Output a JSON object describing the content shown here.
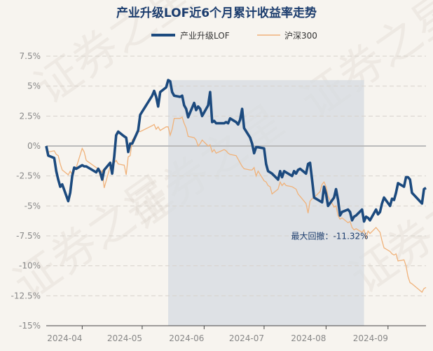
{
  "chart_data": {
    "type": "line",
    "title": "产业升级LOF近6个月累计收益率走势",
    "watermark": "证券之星",
    "colors": {
      "fund": "#1c4a7e",
      "index": "#f0b27a",
      "drawdown": "#d5dbe1",
      "zero": "#bbbbbb",
      "grid": "#d7d2cb"
    },
    "ylim": [
      -15,
      7.5
    ],
    "yticks": [
      7.5,
      5,
      2.5,
      0,
      -2.5,
      -5,
      -7.5,
      -10,
      -12.5,
      -15
    ],
    "ytick_labels": [
      "7.5%",
      "5%",
      "2.5%",
      "0%",
      "-2.5%",
      "-5%",
      "-7.5%",
      "-10%",
      "-12.5%",
      "-15%"
    ],
    "xlim": [
      "2024-03-14",
      "2024-09-20"
    ],
    "xticks": [
      "2024-04-01",
      "2024-05-01",
      "2024-06-01",
      "2024-07-01",
      "2024-08-01",
      "2024-09-01"
    ],
    "xtick_labels": [
      "2024-04",
      "2024-05",
      "2024-06",
      "2024-07",
      "2024-08",
      "2024-09"
    ],
    "legend": {
      "position": "top-center"
    },
    "grid": true,
    "series": [
      {
        "name": "产业升级LOF",
        "points": [
          [
            "2024-03-14",
            0.0
          ],
          [
            "2024-03-15",
            -0.8
          ],
          [
            "2024-03-18",
            -1.0
          ],
          [
            "2024-03-19",
            -2.1
          ],
          [
            "2024-03-20",
            -2.8
          ],
          [
            "2024-03-21",
            -3.4
          ],
          [
            "2024-03-22",
            -3.2
          ],
          [
            "2024-03-25",
            -4.6
          ],
          [
            "2024-03-26",
            -3.9
          ],
          [
            "2024-03-27",
            -2.5
          ],
          [
            "2024-03-28",
            -1.8
          ],
          [
            "2024-03-29",
            -1.9
          ],
          [
            "2024-04-01",
            -1.6
          ],
          [
            "2024-04-02",
            -1.7
          ],
          [
            "2024-04-03",
            -1.7
          ],
          [
            "2024-04-08",
            -2.2
          ],
          [
            "2024-04-09",
            -1.9
          ],
          [
            "2024-04-10",
            -2.2
          ],
          [
            "2024-04-11",
            -2.8
          ],
          [
            "2024-04-12",
            -2.0
          ],
          [
            "2024-04-15",
            -1.4
          ],
          [
            "2024-04-16",
            -2.3
          ],
          [
            "2024-04-17",
            -0.9
          ],
          [
            "2024-04-18",
            0.9
          ],
          [
            "2024-04-19",
            1.2
          ],
          [
            "2024-04-22",
            0.8
          ],
          [
            "2024-04-23",
            0.7
          ],
          [
            "2024-04-24",
            -0.5
          ],
          [
            "2024-04-25",
            0.2
          ],
          [
            "2024-04-26",
            0.2
          ],
          [
            "2024-04-29",
            1.3
          ],
          [
            "2024-04-30",
            2.6
          ],
          [
            "2024-05-06",
            4.2
          ],
          [
            "2024-05-07",
            4.6
          ],
          [
            "2024-05-08",
            4.1
          ],
          [
            "2024-05-09",
            3.3
          ],
          [
            "2024-05-10",
            4.5
          ],
          [
            "2024-05-13",
            4.9
          ],
          [
            "2024-05-14",
            5.5
          ],
          [
            "2024-05-15",
            5.4
          ],
          [
            "2024-05-16",
            4.5
          ],
          [
            "2024-05-17",
            4.2
          ],
          [
            "2024-05-20",
            4.1
          ],
          [
            "2024-05-21",
            4.2
          ],
          [
            "2024-05-22",
            3.4
          ],
          [
            "2024-05-23",
            3.1
          ],
          [
            "2024-05-24",
            2.4
          ],
          [
            "2024-05-27",
            3.6
          ],
          [
            "2024-05-28",
            3.0
          ],
          [
            "2024-05-29",
            3.3
          ],
          [
            "2024-05-30",
            3.1
          ],
          [
            "2024-05-31",
            2.5
          ],
          [
            "2024-06-03",
            3.4
          ],
          [
            "2024-06-04",
            4.5
          ],
          [
            "2024-06-05",
            2.0
          ],
          [
            "2024-06-06",
            2.1
          ],
          [
            "2024-06-07",
            1.9
          ],
          [
            "2024-06-11",
            1.9
          ],
          [
            "2024-06-12",
            2.0
          ],
          [
            "2024-06-13",
            1.9
          ],
          [
            "2024-06-14",
            2.3
          ],
          [
            "2024-06-17",
            2.0
          ],
          [
            "2024-06-18",
            1.8
          ],
          [
            "2024-06-19",
            2.2
          ],
          [
            "2024-06-20",
            3.1
          ],
          [
            "2024-06-21",
            1.5
          ],
          [
            "2024-06-24",
            0.7
          ],
          [
            "2024-06-25",
            0.2
          ],
          [
            "2024-06-26",
            -0.6
          ],
          [
            "2024-06-27",
            -0.1
          ],
          [
            "2024-06-28",
            -0.1
          ],
          [
            "2024-07-01",
            -0.2
          ],
          [
            "2024-07-02",
            -1.5
          ],
          [
            "2024-07-03",
            -2.1
          ],
          [
            "2024-07-04",
            -2.2
          ],
          [
            "2024-07-05",
            -2.3
          ],
          [
            "2024-07-08",
            -2.8
          ],
          [
            "2024-07-09",
            -2.1
          ],
          [
            "2024-07-10",
            -2.6
          ],
          [
            "2024-07-11",
            -2.1
          ],
          [
            "2024-07-12",
            -2.2
          ],
          [
            "2024-07-15",
            -2.5
          ],
          [
            "2024-07-16",
            -2.1
          ],
          [
            "2024-07-17",
            -2.3
          ],
          [
            "2024-07-18",
            -2.0
          ],
          [
            "2024-07-19",
            -1.9
          ],
          [
            "2024-07-22",
            -2.3
          ],
          [
            "2024-07-23",
            -1.5
          ],
          [
            "2024-07-24",
            -1.4
          ],
          [
            "2024-07-25",
            -2.8
          ],
          [
            "2024-07-26",
            -4.3
          ],
          [
            "2024-07-29",
            -4.6
          ],
          [
            "2024-07-30",
            -4.7
          ],
          [
            "2024-07-31",
            -3.4
          ],
          [
            "2024-08-01",
            -4.0
          ],
          [
            "2024-08-02",
            -5.0
          ],
          [
            "2024-08-05",
            -4.3
          ],
          [
            "2024-08-06",
            -3.6
          ],
          [
            "2024-08-07",
            -4.5
          ],
          [
            "2024-08-08",
            -5.8
          ],
          [
            "2024-08-09",
            -5.5
          ],
          [
            "2024-08-12",
            -5.3
          ],
          [
            "2024-08-13",
            -5.5
          ],
          [
            "2024-08-14",
            -6.2
          ],
          [
            "2024-08-15",
            -5.9
          ],
          [
            "2024-08-16",
            -5.8
          ],
          [
            "2024-08-19",
            -5.3
          ],
          [
            "2024-08-20",
            -6.3
          ],
          [
            "2024-08-21",
            -5.9
          ],
          [
            "2024-08-22",
            -6.0
          ],
          [
            "2024-08-23",
            -6.2
          ],
          [
            "2024-08-26",
            -5.3
          ],
          [
            "2024-08-27",
            -5.7
          ],
          [
            "2024-08-28",
            -5.5
          ],
          [
            "2024-08-29",
            -4.8
          ],
          [
            "2024-08-30",
            -4.3
          ],
          [
            "2024-09-02",
            -5.0
          ],
          [
            "2024-09-03",
            -4.4
          ],
          [
            "2024-09-04",
            -4.5
          ],
          [
            "2024-09-05",
            -3.9
          ],
          [
            "2024-09-06",
            -3.1
          ],
          [
            "2024-09-09",
            -3.4
          ],
          [
            "2024-09-10",
            -2.6
          ],
          [
            "2024-09-11",
            -2.6
          ],
          [
            "2024-09-12",
            -2.8
          ],
          [
            "2024-09-13",
            -3.9
          ],
          [
            "2024-09-18",
            -4.8
          ],
          [
            "2024-09-19",
            -3.6
          ],
          [
            "2024-09-20",
            -3.5
          ]
        ]
      },
      {
        "name": "沪深300",
        "points": [
          [
            "2024-03-14",
            0.0
          ],
          [
            "2024-03-15",
            -0.5
          ],
          [
            "2024-03-18",
            -0.4
          ],
          [
            "2024-03-19",
            -0.7
          ],
          [
            "2024-03-20",
            -0.8
          ],
          [
            "2024-03-21",
            -1.5
          ],
          [
            "2024-03-22",
            -2.0
          ],
          [
            "2024-03-25",
            -2.4
          ],
          [
            "2024-03-26",
            -2.1
          ],
          [
            "2024-03-27",
            -2.4
          ],
          [
            "2024-03-28",
            -2.0
          ],
          [
            "2024-03-29",
            -1.8
          ],
          [
            "2024-04-01",
            -0.2
          ],
          [
            "2024-04-02",
            -0.5
          ],
          [
            "2024-04-03",
            -1.2
          ],
          [
            "2024-04-08",
            -1.8
          ],
          [
            "2024-04-09",
            -1.9
          ],
          [
            "2024-04-10",
            -2.5
          ],
          [
            "2024-04-11",
            -2.0
          ],
          [
            "2024-04-12",
            -3.5
          ],
          [
            "2024-04-15",
            -1.7
          ],
          [
            "2024-04-16",
            -2.4
          ],
          [
            "2024-04-17",
            -1.4
          ],
          [
            "2024-04-18",
            -1.2
          ],
          [
            "2024-04-19",
            -1.5
          ],
          [
            "2024-04-22",
            -1.6
          ],
          [
            "2024-04-23",
            -2.4
          ],
          [
            "2024-04-24",
            -0.9
          ],
          [
            "2024-04-25",
            -0.8
          ],
          [
            "2024-04-26",
            0.5
          ],
          [
            "2024-04-29",
            1.2
          ],
          [
            "2024-04-30",
            1.2
          ],
          [
            "2024-05-06",
            1.7
          ],
          [
            "2024-05-07",
            1.8
          ],
          [
            "2024-05-08",
            1.4
          ],
          [
            "2024-05-09",
            1.6
          ],
          [
            "2024-05-10",
            1.3
          ],
          [
            "2024-05-13",
            1.6
          ],
          [
            "2024-05-14",
            1.6
          ],
          [
            "2024-05-15",
            0.9
          ],
          [
            "2024-05-16",
            1.4
          ],
          [
            "2024-05-17",
            2.3
          ],
          [
            "2024-05-20",
            2.3
          ],
          [
            "2024-05-21",
            2.4
          ],
          [
            "2024-05-22",
            1.9
          ],
          [
            "2024-05-23",
            1.5
          ],
          [
            "2024-05-24",
            0.8
          ],
          [
            "2024-05-27",
            0.7
          ],
          [
            "2024-05-28",
            0.5
          ],
          [
            "2024-05-29",
            0.0
          ],
          [
            "2024-05-30",
            0.2
          ],
          [
            "2024-05-31",
            0.5
          ],
          [
            "2024-06-03",
            0.0
          ],
          [
            "2024-06-04",
            0.1
          ],
          [
            "2024-06-05",
            -0.5
          ],
          [
            "2024-06-06",
            -0.3
          ],
          [
            "2024-06-07",
            -0.6
          ],
          [
            "2024-06-11",
            -0.3
          ],
          [
            "2024-06-12",
            -0.4
          ],
          [
            "2024-06-13",
            -0.6
          ],
          [
            "2024-06-14",
            -0.7
          ],
          [
            "2024-06-17",
            -0.8
          ],
          [
            "2024-06-18",
            -1.1
          ],
          [
            "2024-06-19",
            -1.4
          ],
          [
            "2024-06-20",
            -1.7
          ],
          [
            "2024-06-21",
            -1.9
          ],
          [
            "2024-06-24",
            -2.0
          ],
          [
            "2024-06-25",
            -2.0
          ],
          [
            "2024-06-26",
            -1.8
          ],
          [
            "2024-06-27",
            -2.5
          ],
          [
            "2024-06-28",
            -2.1
          ],
          [
            "2024-07-01",
            -2.9
          ],
          [
            "2024-07-02",
            -3.0
          ],
          [
            "2024-07-03",
            -3.3
          ],
          [
            "2024-07-04",
            -3.4
          ],
          [
            "2024-07-05",
            -4.0
          ],
          [
            "2024-07-08",
            -3.6
          ],
          [
            "2024-07-09",
            -3.0
          ],
          [
            "2024-07-10",
            -3.3
          ],
          [
            "2024-07-11",
            -3.1
          ],
          [
            "2024-07-12",
            -3.3
          ],
          [
            "2024-07-15",
            -3.4
          ],
          [
            "2024-07-16",
            -3.5
          ],
          [
            "2024-07-17",
            -3.6
          ],
          [
            "2024-07-18",
            -4.0
          ],
          [
            "2024-07-19",
            -4.2
          ],
          [
            "2024-07-22",
            -4.8
          ],
          [
            "2024-07-23",
            -5.6
          ],
          [
            "2024-07-24",
            -4.6
          ],
          [
            "2024-07-25",
            -4.4
          ],
          [
            "2024-07-26",
            -4.3
          ],
          [
            "2024-07-29",
            -3.8
          ],
          [
            "2024-07-30",
            -3.2
          ],
          [
            "2024-07-31",
            -3.0
          ],
          [
            "2024-08-01",
            -3.4
          ],
          [
            "2024-08-02",
            -4.2
          ],
          [
            "2024-08-05",
            -5.1
          ],
          [
            "2024-08-06",
            -5.0
          ],
          [
            "2024-08-07",
            -5.8
          ],
          [
            "2024-08-08",
            -6.1
          ],
          [
            "2024-08-09",
            -6.0
          ],
          [
            "2024-08-12",
            -6.4
          ],
          [
            "2024-08-13",
            -6.3
          ],
          [
            "2024-08-14",
            -6.8
          ],
          [
            "2024-08-15",
            -7.0
          ],
          [
            "2024-08-16",
            -6.9
          ],
          [
            "2024-08-19",
            -7.2
          ],
          [
            "2024-08-20",
            -7.0
          ],
          [
            "2024-08-21",
            -7.7
          ],
          [
            "2024-08-22",
            -7.1
          ],
          [
            "2024-08-23",
            -7.3
          ],
          [
            "2024-08-26",
            -6.8
          ],
          [
            "2024-08-27",
            -7.0
          ],
          [
            "2024-08-28",
            -7.2
          ],
          [
            "2024-08-29",
            -7.9
          ],
          [
            "2024-08-30",
            -8.5
          ],
          [
            "2024-09-02",
            -8.8
          ],
          [
            "2024-09-03",
            -9.0
          ],
          [
            "2024-09-04",
            -9.1
          ],
          [
            "2024-09-05",
            -9.0
          ],
          [
            "2024-09-06",
            -9.6
          ],
          [
            "2024-09-09",
            -9.5
          ],
          [
            "2024-09-10",
            -10.0
          ],
          [
            "2024-09-11",
            -10.9
          ],
          [
            "2024-09-12",
            -11.4
          ],
          [
            "2024-09-13",
            -11.5
          ],
          [
            "2024-09-18",
            -12.2
          ],
          [
            "2024-09-19",
            -11.9
          ],
          [
            "2024-09-20",
            -11.8
          ]
        ]
      }
    ],
    "max_drawdown": {
      "label": "最大回撤：-11.32%",
      "start": "2024-05-14",
      "end": "2024-08-20"
    }
  }
}
